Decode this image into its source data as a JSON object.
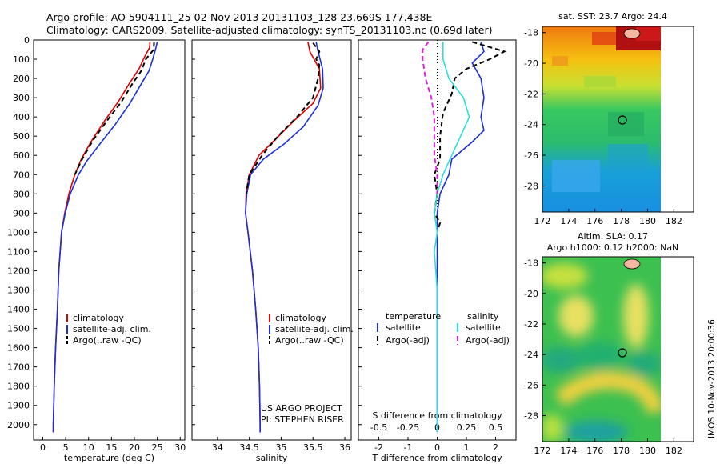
{
  "figure": {
    "title_line1": "Argo profile: AO 5904111_25 02-Nov-2013 20131103_128 23.669S 177.438E",
    "title_line2": "Climatology: CARS2009. Satellite-adjusted climatology: synTS_20131103.nc (0.69d later)",
    "credit_line1": "US ARGO PROJECT",
    "credit_line2": "PI: STEPHEN RISER",
    "footer_stamp": "IMOS 10-Nov-2013 20:00:36"
  },
  "colors": {
    "climatology": "#e00000",
    "satellite": "#1a2fd6",
    "argo": "#000000",
    "sal_satellite": "#28e0e0",
    "sal_argo": "#e020e0"
  },
  "chart_data": [
    {
      "type": "line",
      "id": "temperature",
      "xlabel": "temperature (deg C)",
      "ylabel": "",
      "xlim": [
        -2,
        31
      ],
      "ylim": [
        2080,
        0
      ],
      "xticks": [
        "0",
        "5",
        "10",
        "15",
        "20",
        "25",
        "30"
      ],
      "xtick_values": [
        0,
        5,
        10,
        15,
        20,
        25,
        30
      ],
      "yticks": [
        "0",
        "100",
        "200",
        "300",
        "400",
        "500",
        "600",
        "700",
        "800",
        "900",
        "1000",
        "1100",
        "1200",
        "1300",
        "1400",
        "1500",
        "1600",
        "1700",
        "1800",
        "1900",
        "2000"
      ],
      "ytick_values": [
        0,
        100,
        200,
        300,
        400,
        500,
        600,
        700,
        800,
        900,
        1000,
        1100,
        1200,
        1300,
        1400,
        1500,
        1600,
        1700,
        1800,
        1900,
        2000
      ],
      "legend": [
        "climatology",
        "satellite-adj. clim.",
        "Argo(..raw -QC)"
      ],
      "series": [
        {
          "name": "climatology",
          "color": "climatology",
          "dash": "",
          "points": [
            [
              23.4,
              10
            ],
            [
              23.3,
              40
            ],
            [
              22.4,
              80
            ],
            [
              21,
              150
            ],
            [
              18.8,
              230
            ],
            [
              16.5,
              320
            ],
            [
              13.5,
              420
            ],
            [
              10.5,
              530
            ],
            [
              8.4,
              620
            ],
            [
              7,
              700
            ],
            [
              5.7,
              800
            ],
            [
              4.8,
              900
            ],
            [
              4.1,
              1000
            ],
            [
              3.5,
              1200
            ],
            [
              3.2,
              1400
            ],
            [
              2.8,
              1600
            ],
            [
              2.5,
              1800
            ],
            [
              2.3,
              2000
            ],
            [
              2.3,
              2040
            ]
          ]
        },
        {
          "name": "satellite-adj. clim.",
          "color": "satellite",
          "dash": "",
          "points": [
            [
              25.0,
              10
            ],
            [
              24.6,
              50
            ],
            [
              24,
              100
            ],
            [
              23.2,
              160
            ],
            [
              21.2,
              240
            ],
            [
              19,
              330
            ],
            [
              15.8,
              440
            ],
            [
              12.5,
              540
            ],
            [
              9.6,
              630
            ],
            [
              7.8,
              700
            ],
            [
              6,
              800
            ],
            [
              4.9,
              900
            ],
            [
              4.1,
              1000
            ],
            [
              3.5,
              1200
            ],
            [
              3.2,
              1400
            ],
            [
              2.8,
              1600
            ],
            [
              2.5,
              1800
            ],
            [
              2.3,
              2000
            ],
            [
              2.3,
              2040
            ]
          ]
        },
        {
          "name": "Argo(..raw -QC)",
          "color": "argo",
          "dash": "6,4",
          "points": [
            [
              24.3,
              10
            ],
            [
              24.2,
              50
            ],
            [
              22.5,
              100
            ],
            [
              21.5,
              160
            ],
            [
              19.5,
              230
            ],
            [
              17.2,
              320
            ],
            [
              14,
              420
            ],
            [
              11,
              520
            ],
            [
              8.6,
              620
            ],
            [
              7,
              700
            ]
          ]
        }
      ]
    },
    {
      "type": "line",
      "id": "salinity",
      "xlabel": "salinity",
      "ylabel": "",
      "xlim": [
        33.6,
        36.1
      ],
      "ylim": [
        2080,
        0
      ],
      "xticks": [
        "34",
        "34.5",
        "35",
        "35.5",
        "36"
      ],
      "xtick_values": [
        34,
        34.5,
        35,
        35.5,
        36
      ],
      "legend": [
        "climatology",
        "satellite-adj. clim.",
        "Argo(..raw -QC)"
      ],
      "series": [
        {
          "name": "climatology",
          "color": "climatology",
          "dash": "",
          "points": [
            [
              35.42,
              10
            ],
            [
              35.45,
              60
            ],
            [
              35.6,
              150
            ],
            [
              35.62,
              250
            ],
            [
              35.5,
              330
            ],
            [
              35.2,
              420
            ],
            [
              34.9,
              520
            ],
            [
              34.65,
              600
            ],
            [
              34.5,
              700
            ],
            [
              34.45,
              800
            ],
            [
              34.44,
              900
            ],
            [
              34.48,
              1000
            ],
            [
              34.55,
              1200
            ],
            [
              34.6,
              1400
            ],
            [
              34.64,
              1600
            ],
            [
              34.66,
              1800
            ],
            [
              34.67,
              2000
            ],
            [
              34.67,
              2040
            ]
          ]
        },
        {
          "name": "satellite-adj. clim.",
          "color": "satellite",
          "dash": "",
          "points": [
            [
              35.55,
              10
            ],
            [
              35.58,
              60
            ],
            [
              35.65,
              150
            ],
            [
              35.66,
              250
            ],
            [
              35.58,
              340
            ],
            [
              35.35,
              450
            ],
            [
              35.05,
              540
            ],
            [
              34.72,
              620
            ],
            [
              34.52,
              700
            ],
            [
              34.46,
              800
            ],
            [
              34.44,
              900
            ],
            [
              34.48,
              1000
            ],
            [
              34.55,
              1200
            ],
            [
              34.6,
              1400
            ],
            [
              34.64,
              1600
            ],
            [
              34.66,
              1800
            ],
            [
              34.67,
              2000
            ],
            [
              34.67,
              2040
            ]
          ]
        },
        {
          "name": "Argo(..raw -QC)",
          "color": "argo",
          "dash": "6,4",
          "points": [
            [
              35.5,
              15
            ],
            [
              35.6,
              60
            ],
            [
              35.55,
              100
            ],
            [
              35.6,
              130
            ],
            [
              35.58,
              200
            ],
            [
              35.5,
              300
            ],
            [
              35.25,
              400
            ],
            [
              34.95,
              500
            ],
            [
              34.7,
              600
            ],
            [
              34.5,
              700
            ],
            [
              34.45,
              800
            ]
          ]
        }
      ]
    },
    {
      "type": "line",
      "id": "difference",
      "xlabel": "T difference from climatology",
      "x2label": "S difference from climatology",
      "xlim": [
        -2.7,
        2.7
      ],
      "ylim": [
        2080,
        0
      ],
      "xticks": [
        "-2",
        "-1",
        "0",
        "1",
        "2"
      ],
      "xtick_values": [
        -2,
        -1,
        0,
        1,
        2
      ],
      "s_xticks": [
        "-0.5",
        "-0.25",
        "0",
        "0.25",
        "0.5"
      ],
      "s_xtick_values": [
        -2,
        -1,
        0,
        1,
        2
      ],
      "legend_headers": [
        "temperature",
        "salinity"
      ],
      "legend": [
        "satellite",
        "Argo(-adj)",
        "satellite",
        "Argo(-adj)"
      ],
      "series": [
        {
          "name": "satellite",
          "quantity": "temperature",
          "color": "satellite",
          "dash": "",
          "points": [
            [
              1.5,
              10
            ],
            [
              1.6,
              60
            ],
            [
              1.2,
              120
            ],
            [
              1.5,
              200
            ],
            [
              1.6,
              300
            ],
            [
              1.5,
              400
            ],
            [
              1.6,
              470
            ],
            [
              1.2,
              530
            ],
            [
              0.5,
              620
            ],
            [
              0.4,
              700
            ],
            [
              0.1,
              800
            ],
            [
              0,
              900
            ],
            [
              0,
              2040
            ]
          ]
        },
        {
          "name": "Argo(-adj)",
          "quantity": "temperature",
          "color": "argo",
          "dash": "6,4",
          "points": [
            [
              1.2,
              10
            ],
            [
              2.3,
              60
            ],
            [
              1.8,
              100
            ],
            [
              1,
              150
            ],
            [
              0.6,
              200
            ],
            [
              0.5,
              280
            ],
            [
              0.2,
              380
            ],
            [
              0.1,
              500
            ],
            [
              0.1,
              620
            ],
            [
              -0.1,
              700
            ],
            [
              0,
              800
            ],
            [
              -0.1,
              900
            ],
            [
              0.1,
              950
            ],
            [
              0,
              1000
            ]
          ]
        },
        {
          "name": "satellite",
          "quantity": "salinity",
          "color": "sal_satellite",
          "dash": "",
          "points": [
            [
              0.2,
              10
            ],
            [
              0.2,
              100
            ],
            [
              0.4,
              200
            ],
            [
              0.9,
              300
            ],
            [
              1.1,
              400
            ],
            [
              0.8,
              500
            ],
            [
              0.5,
              600
            ],
            [
              0.2,
              700
            ],
            [
              0,
              800
            ],
            [
              -0.1,
              900
            ],
            [
              0,
              1000
            ],
            [
              -0.1,
              1100
            ],
            [
              0,
              1300
            ],
            [
              0,
              2040
            ]
          ]
        },
        {
          "name": "Argo(-adj)",
          "quantity": "salinity",
          "color": "sal_argo",
          "dash": "6,4",
          "points": [
            [
              -0.3,
              10
            ],
            [
              -0.5,
              50
            ],
            [
              -0.5,
              100
            ],
            [
              -0.4,
              200
            ],
            [
              -0.2,
              300
            ],
            [
              -0.1,
              400
            ],
            [
              -0.1,
              600
            ],
            [
              0,
              700
            ],
            [
              0,
              800
            ]
          ]
        }
      ]
    }
  ],
  "maps": [
    {
      "id": "sst-map",
      "title": "sat. SST: 23.7 Argo: 24.4",
      "subtitle": "",
      "xticks": [
        "172",
        "174",
        "176",
        "178",
        "180",
        "182"
      ],
      "xtick_values": [
        172,
        174,
        176,
        178,
        180,
        182
      ],
      "yticks": [
        "-18",
        "-20",
        "-22",
        "-24",
        "-26",
        "-28"
      ],
      "ytick_values": [
        -18,
        -20,
        -22,
        -24,
        -26,
        -28
      ],
      "xlim": [
        172,
        183.5
      ],
      "ylim": [
        -29.7,
        -17.6
      ],
      "marker": [
        177.438,
        -23.669
      ]
    },
    {
      "id": "sla-map",
      "title": "Altim. SLA: 0.17",
      "subtitle": "Argo h1000: 0.12 h2000: NaN",
      "xticks": [
        "172",
        "174",
        "176",
        "178",
        "180",
        "182"
      ],
      "xtick_values": [
        172,
        174,
        176,
        178,
        180,
        182
      ],
      "yticks": [
        "-18",
        "-20",
        "-22",
        "-24",
        "-26",
        "-28"
      ],
      "ytick_values": [
        -18,
        -20,
        -22,
        -24,
        -26,
        -28
      ],
      "xlim": [
        172,
        183.5
      ],
      "ylim": [
        -29.7,
        -17.6
      ],
      "marker": [
        177.438,
        -23.669
      ]
    }
  ]
}
